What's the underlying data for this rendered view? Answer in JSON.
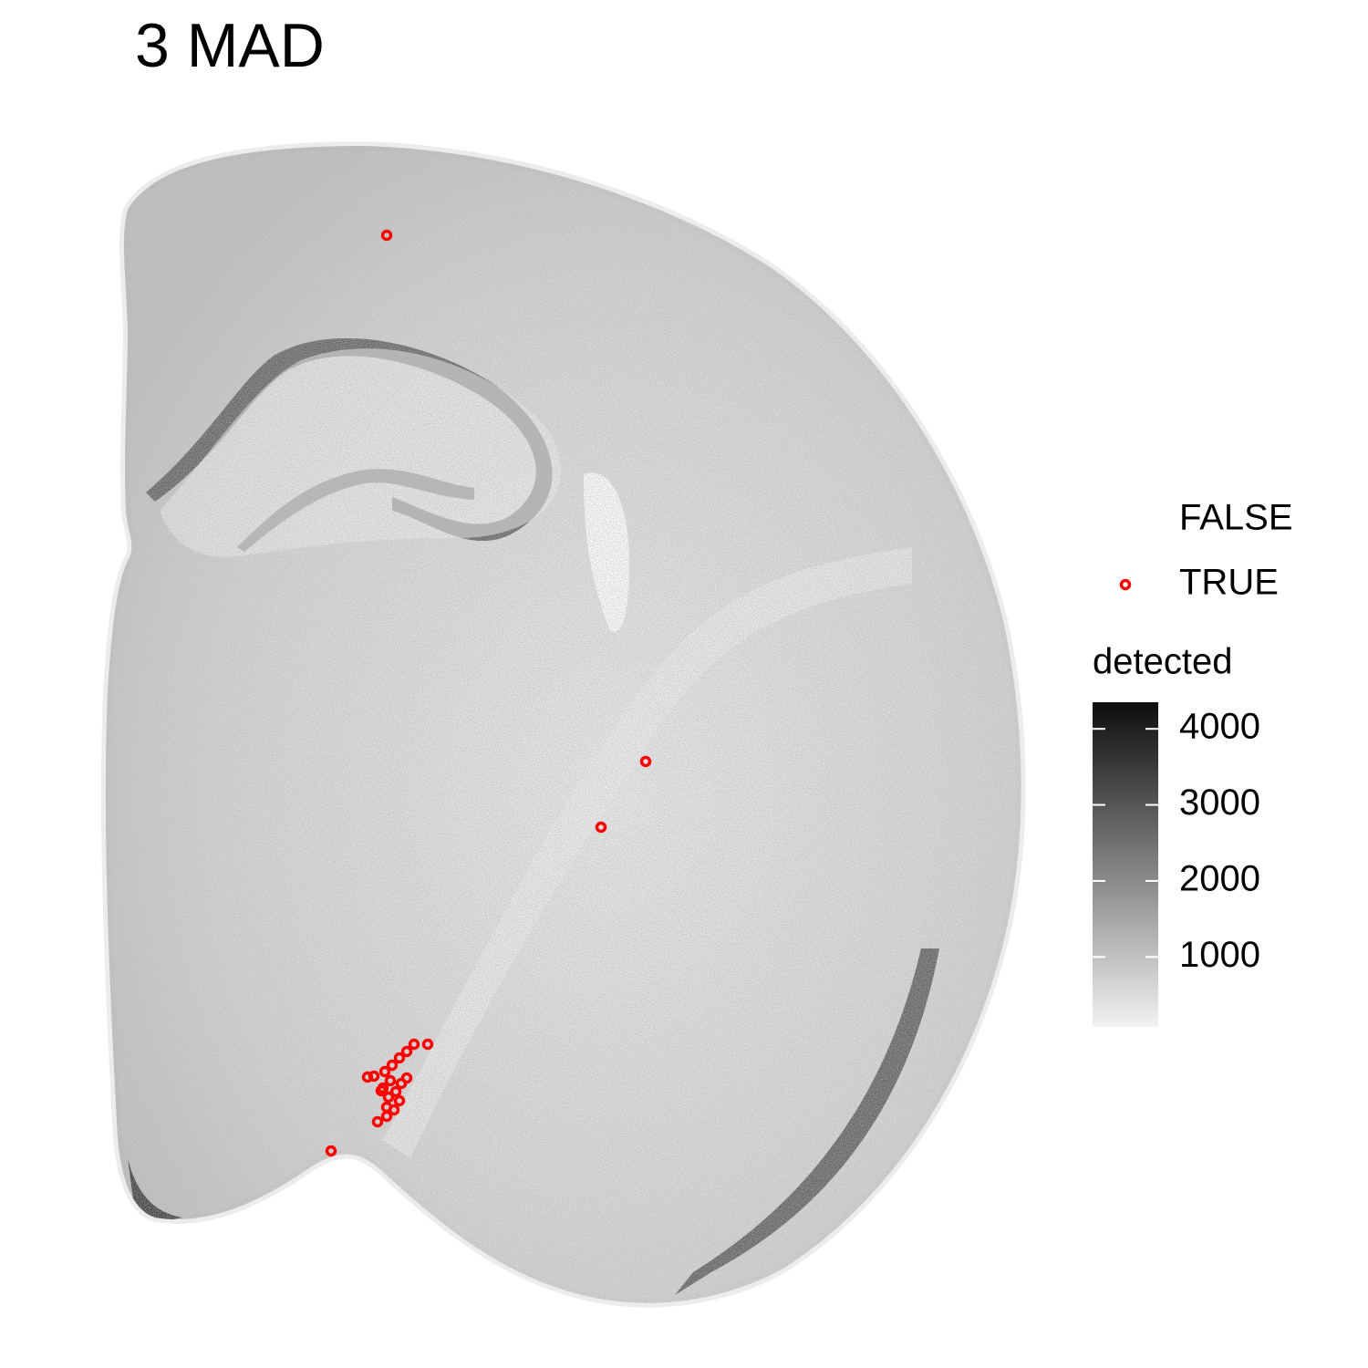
{
  "chart_data": {
    "type": "scatter",
    "title": "3 MAD",
    "series": [
      {
        "name": "FALSE"
      },
      {
        "name": "TRUE",
        "color": "#ff0000"
      }
    ],
    "colorbar": {
      "title": "detected",
      "lim": [
        80,
        4350
      ],
      "ticks": [
        1000,
        2000,
        3000,
        4000
      ],
      "colors": [
        "#f2f2f2",
        "#0d0d0d"
      ]
    }
  }
}
